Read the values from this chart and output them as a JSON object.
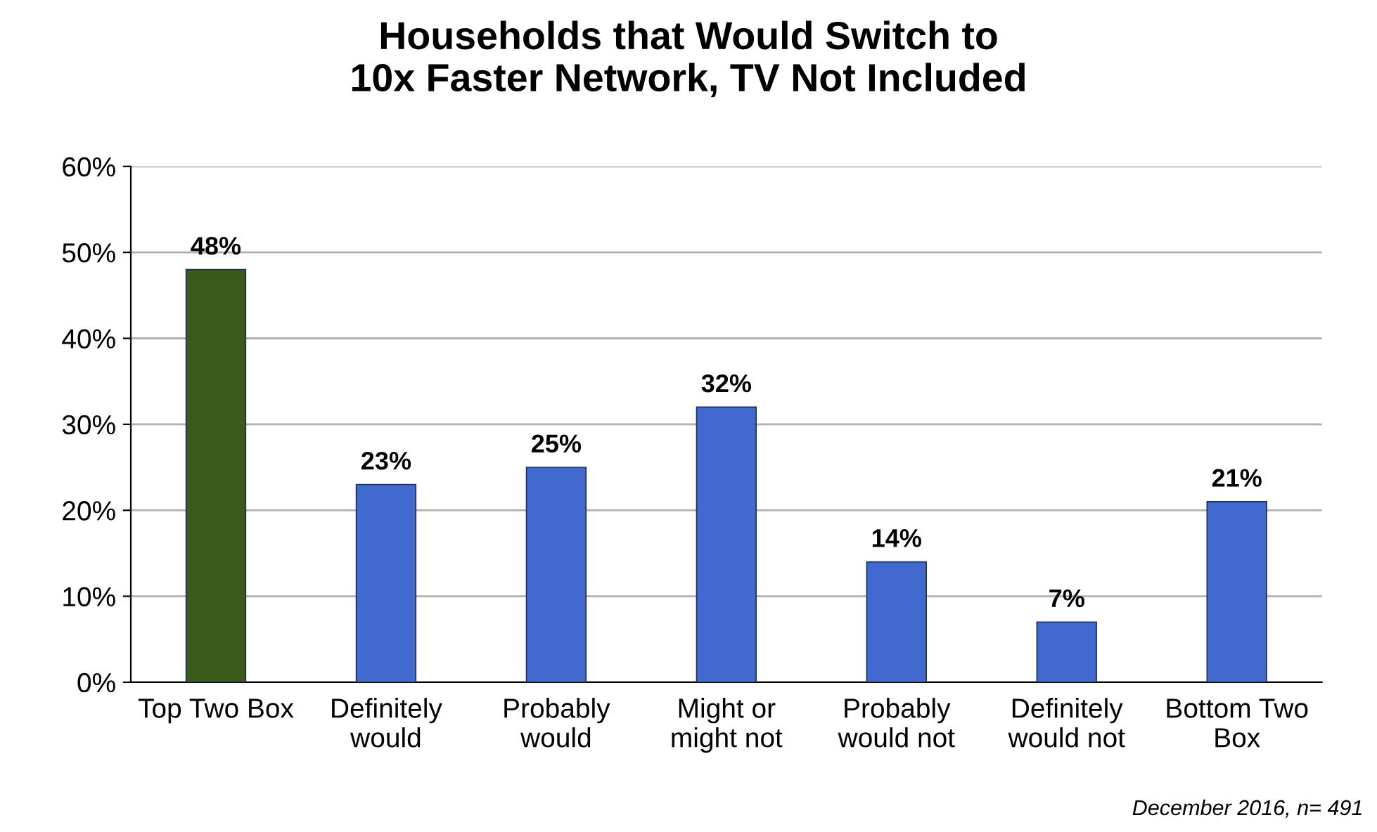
{
  "chart_data": {
    "type": "bar",
    "title": "Households that Would Switch to\n10x Faster Network, TV Not Included",
    "categories": [
      "Top Two Box",
      "Definitely\nwould",
      "Probably\nwould",
      "Might or\nmight not",
      "Probably\nwould not",
      "Definitely\nwould not",
      "Bottom Two\nBox"
    ],
    "values": [
      48,
      23,
      25,
      32,
      14,
      7,
      21
    ],
    "colors": [
      "#3a5a1c",
      "#4169d0",
      "#4169d0",
      "#4169d0",
      "#4169d0",
      "#4169d0",
      "#4169d0"
    ],
    "value_labels": [
      "48%",
      "23%",
      "25%",
      "32%",
      "14%",
      "7%",
      "21%"
    ],
    "ylim": [
      0,
      60
    ],
    "yticks": [
      {
        "value": 0,
        "label": "0%"
      },
      {
        "value": 10,
        "label": "10%"
      },
      {
        "value": 20,
        "label": "20%"
      },
      {
        "value": 30,
        "label": "30%"
      },
      {
        "value": 40,
        "label": "40%"
      },
      {
        "value": 50,
        "label": "50%"
      },
      {
        "value": 60,
        "label": "60%"
      }
    ],
    "grid": "y",
    "annotations": [
      "December 2016, n= 491"
    ]
  }
}
